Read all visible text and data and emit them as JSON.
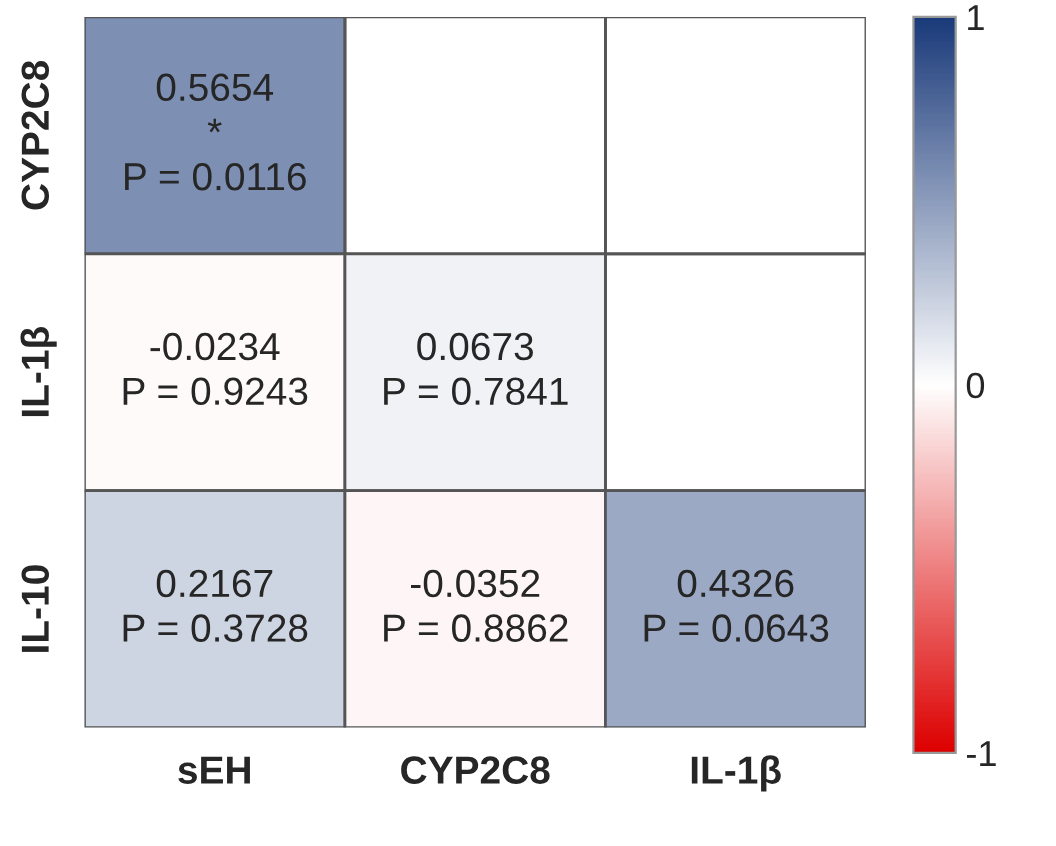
{
  "chart_data": {
    "type": "heatmap",
    "categories": [
      "sEH",
      "CYP2C8",
      "IL-1β"
    ],
    "y_categories": [
      "CYP2C8",
      "IL-1β",
      "IL-10"
    ],
    "cells": [
      [
        0.5654,
        null,
        null
      ],
      [
        -0.0234,
        0.0673,
        null
      ],
      [
        0.2167,
        -0.0352,
        0.4326
      ]
    ],
    "cell_labels": [
      [
        "0.5654\n*\nP = 0.0116",
        null,
        null
      ],
      [
        "-0.0234\nP = 0.9243",
        "0.0673\nP = 0.7841",
        null
      ],
      [
        "0.2167\nP = 0.3728",
        "-0.0352\nP = 0.8862",
        "0.4326\nP = 0.0643"
      ]
    ],
    "clim": [
      -1,
      1
    ],
    "cticks": [
      {
        "value": -1,
        "label": "-1"
      },
      0,
      1
    ]
  }
}
